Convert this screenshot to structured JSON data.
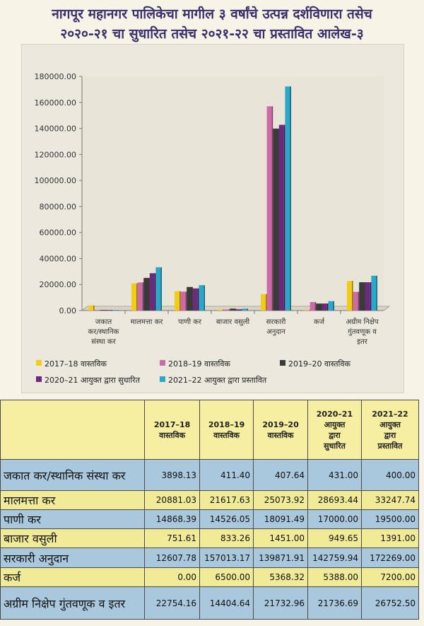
{
  "page": {
    "title_line1": "नागपूर महानगर पालिकेचा मागील ३ वर्षांचे उत्पन्न दर्शविणारा तसेच",
    "title_line2": "२०२०-२१ चा सुधारित तसेच २०२१-२२ चा प्रस्तावित आलेख-३"
  },
  "chart_data": {
    "type": "bar",
    "title": "",
    "xlabel": "",
    "ylabel": "",
    "ylim": [
      0,
      180000
    ],
    "yticks": [
      "0.00",
      "20000.00",
      "40000.00",
      "60000.00",
      "80000.00",
      "100000.00",
      "120000.00",
      "140000.00",
      "160000.00",
      "180000.00"
    ],
    "grid": false,
    "legend_position": "bottom",
    "categories": [
      "जकात कर/स्थानिक संस्था कर",
      "मालमत्ता कर",
      "पाणी कर",
      "बाजार वसुली",
      "सरकारी अनुदान",
      "कर्ज",
      "अग्रीम निक्षेप गुंतवणूक व इतर"
    ],
    "category_lines": [
      [
        "जकात",
        "कर/स्थानिक",
        "संस्था कर"
      ],
      [
        "मालमत्ता कर"
      ],
      [
        "पाणी कर"
      ],
      [
        "बाजार वसुली"
      ],
      [
        "सरकारी",
        "अनुदान"
      ],
      [
        "कर्ज"
      ],
      [
        "अग्रीम निक्षेप",
        "गुंतवणूक व",
        "इतर"
      ]
    ],
    "series": [
      {
        "name": "2017–18 वास्तविक",
        "color": "#f2cc18",
        "values": [
          3898.13,
          20881.03,
          14868.39,
          751.61,
          12607.78,
          0.0,
          22754.16
        ]
      },
      {
        "name": "2018–19 वास्तविक",
        "color": "#cf6aa8",
        "values": [
          411.4,
          21617.63,
          14526.05,
          833.26,
          157013.17,
          6500.0,
          14404.64
        ]
      },
      {
        "name": "2019–20 वास्तविक",
        "color": "#3a3a3a",
        "values": [
          407.64,
          25073.92,
          18091.49,
          1451.0,
          139871.91,
          5368.32,
          21732.96
        ]
      },
      {
        "name": "2020–21 आयुक्त द्वारा सुधारित",
        "color": "#6b2a7e",
        "values": [
          431.0,
          28693.44,
          17000.0,
          949.65,
          142759.94,
          5388.0,
          21736.69
        ]
      },
      {
        "name": "2021–22 आयुक्त द्वारा प्रस्तावित",
        "color": "#2aa7c9",
        "values": [
          400.0,
          33247.74,
          19500.0,
          1391.0,
          172269.0,
          7200.0,
          26752.5
        ]
      }
    ]
  },
  "table": {
    "headers": [
      [
        "2017–18",
        "वास्तविक"
      ],
      [
        "2018–19",
        "वास्तविक"
      ],
      [
        "2019–20",
        "वास्तविक"
      ],
      [
        "2020–21",
        "आयुक्त",
        "द्वारा",
        "सुधारित"
      ],
      [
        "2021–22",
        "आयुक्त",
        "द्वारा",
        "प्रस्तावित"
      ]
    ],
    "rows": [
      {
        "label": "जकात कर/स्थानिक संस्था कर",
        "values": [
          "3898.13",
          "411.40",
          "407.64",
          "431.00",
          "400.00"
        ]
      },
      {
        "label": "मालमत्ता कर",
        "values": [
          "20881.03",
          "21617.63",
          "25073.92",
          "28693.44",
          "33247.74"
        ]
      },
      {
        "label": "पाणी कर",
        "values": [
          "14868.39",
          "14526.05",
          "18091.49",
          "17000.00",
          "19500.00"
        ]
      },
      {
        "label": "बाजार वसुली",
        "values": [
          "751.61",
          "833.26",
          "1451.00",
          "949.65",
          "1391.00"
        ]
      },
      {
        "label": "सरकारी अनुदान",
        "values": [
          "12607.78",
          "157013.17",
          "139871.91",
          "142759.94",
          "172269.00"
        ]
      },
      {
        "label": "कर्ज",
        "values": [
          "0.00",
          "6500.00",
          "5368.32",
          "5388.00",
          "7200.00"
        ]
      },
      {
        "label": "अग्रीम निक्षेप गुंतवणूक व इतर",
        "values": [
          "22754.16",
          "14404.64",
          "21732.96",
          "21736.69",
          "26752.50"
        ]
      }
    ]
  }
}
